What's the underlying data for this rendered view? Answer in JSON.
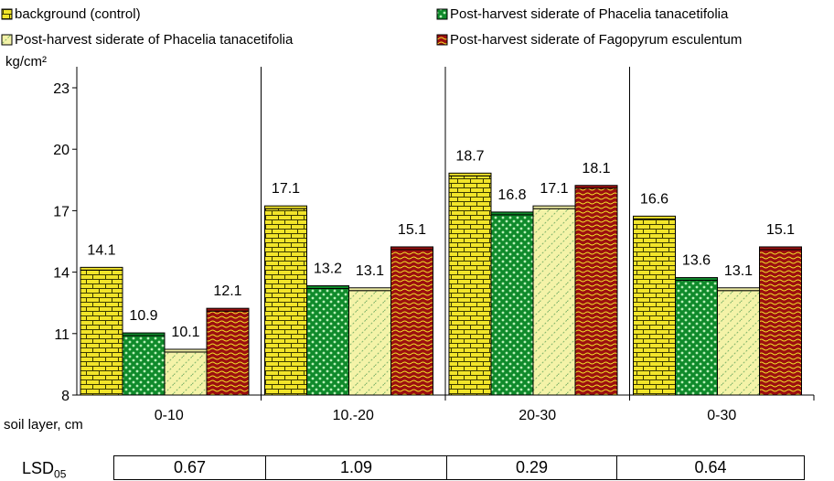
{
  "chart_data": {
    "type": "bar",
    "ylabel": "kg/cm²",
    "xlabel": "soil layer, cm",
    "ylim": [
      8,
      23
    ],
    "yticks": [
      8,
      11,
      14,
      17,
      20,
      23
    ],
    "categories": [
      "0-10",
      "10.-20",
      "20-30",
      "0-30"
    ],
    "series": [
      {
        "name": "background (control)",
        "values": [
          14.1,
          17.1,
          18.7,
          16.6
        ],
        "color": "#f2e52a"
      },
      {
        "name": "Post-harvest siderate of Phacelia tanacetifolia",
        "values": [
          10.9,
          13.2,
          16.8,
          13.6
        ],
        "color": "#0f8a2b"
      },
      {
        "name": "Post-harvest siderate of Phacelia tanacetifolia",
        "values": [
          10.1,
          13.1,
          17.1,
          13.1
        ],
        "color": "#f4f3a8"
      },
      {
        "name": "Post-harvest siderate of Fagopyrum esculentum",
        "values": [
          12.1,
          15.1,
          18.1,
          15.1
        ],
        "color": "#9c0f0f"
      }
    ],
    "grid": false,
    "legend_position": "top"
  },
  "lsd": {
    "label": "LSD",
    "label_sub": "05",
    "values": [
      "0.67",
      "1.09",
      "0.29",
      "0.64"
    ]
  }
}
